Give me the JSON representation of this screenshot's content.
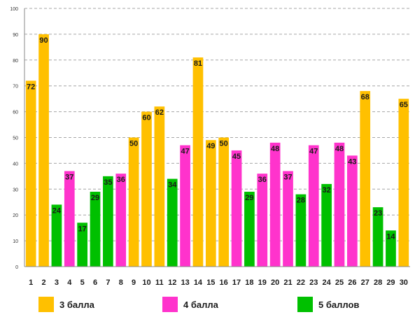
{
  "chart_data": {
    "type": "bar",
    "categories": [
      "1",
      "2",
      "3",
      "4",
      "5",
      "6",
      "7",
      "8",
      "9",
      "10",
      "11",
      "12",
      "13",
      "14",
      "15",
      "16",
      "17",
      "18",
      "19",
      "20",
      "21",
      "22",
      "23",
      "24",
      "25",
      "26",
      "27",
      "28",
      "29",
      "30"
    ],
    "values": [
      72,
      90,
      24,
      37,
      17,
      29,
      35,
      36,
      50,
      60,
      62,
      34,
      47,
      81,
      49,
      50,
      45,
      29,
      36,
      48,
      37,
      28,
      47,
      32,
      48,
      43,
      68,
      23,
      14,
      65
    ],
    "groups": [
      "3",
      "3",
      "5",
      "4",
      "5",
      "5",
      "5",
      "4",
      "3",
      "3",
      "3",
      "5",
      "4",
      "3",
      "3",
      "3",
      "4",
      "5",
      "4",
      "4",
      "4",
      "5",
      "4",
      "5",
      "4",
      "4",
      "3",
      "5",
      "5",
      "3"
    ],
    "ylim": [
      0,
      100
    ],
    "yticks": [
      0,
      10,
      20,
      30,
      40,
      50,
      60,
      70,
      80,
      90,
      100
    ],
    "grid": true,
    "legend_position": "bottom",
    "series": [
      {
        "key": "3",
        "name": "3 балла",
        "color": "#FFC000"
      },
      {
        "key": "4",
        "name": "4 балла",
        "color": "#FF33CC"
      },
      {
        "key": "5",
        "name": "5 баллов",
        "color": "#00C000"
      }
    ]
  }
}
